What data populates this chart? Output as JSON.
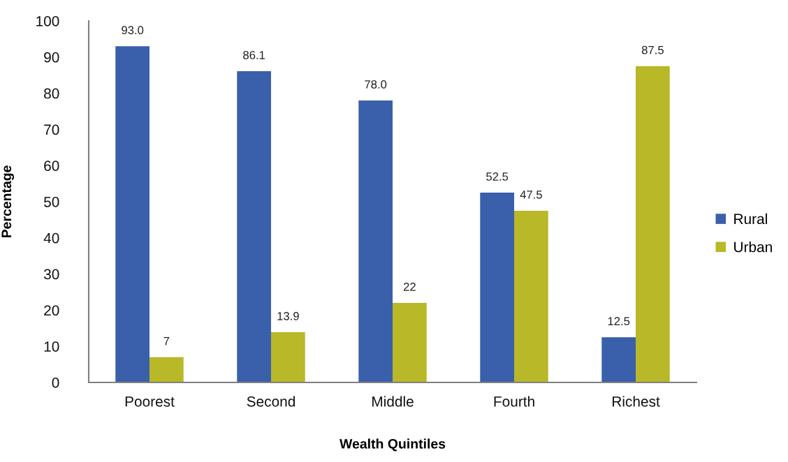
{
  "chart_data": {
    "type": "bar",
    "xlabel": "Wealth Quintiles",
    "ylabel": "Percentage",
    "categories": [
      "Poorest",
      "Second",
      "Middle",
      "Fourth",
      "Richest"
    ],
    "series": [
      {
        "name": "Rural",
        "color": "#3a5fab",
        "values": [
          93.0,
          86.1,
          78.0,
          52.5,
          12.5
        ],
        "value_labels": [
          "93.0",
          "86.1",
          "78.0",
          "52.5",
          "12.5"
        ]
      },
      {
        "name": "Urban",
        "color": "#b8b828",
        "values": [
          7,
          13.9,
          22,
          47.5,
          87.5
        ],
        "value_labels": [
          "7",
          "13.9",
          "22",
          "47.5",
          "87.5"
        ]
      }
    ],
    "ylim": [
      0,
      100
    ],
    "yticks": [
      0,
      10,
      20,
      30,
      40,
      50,
      60,
      70,
      80,
      90,
      100
    ],
    "grid": false,
    "legend": "right"
  }
}
